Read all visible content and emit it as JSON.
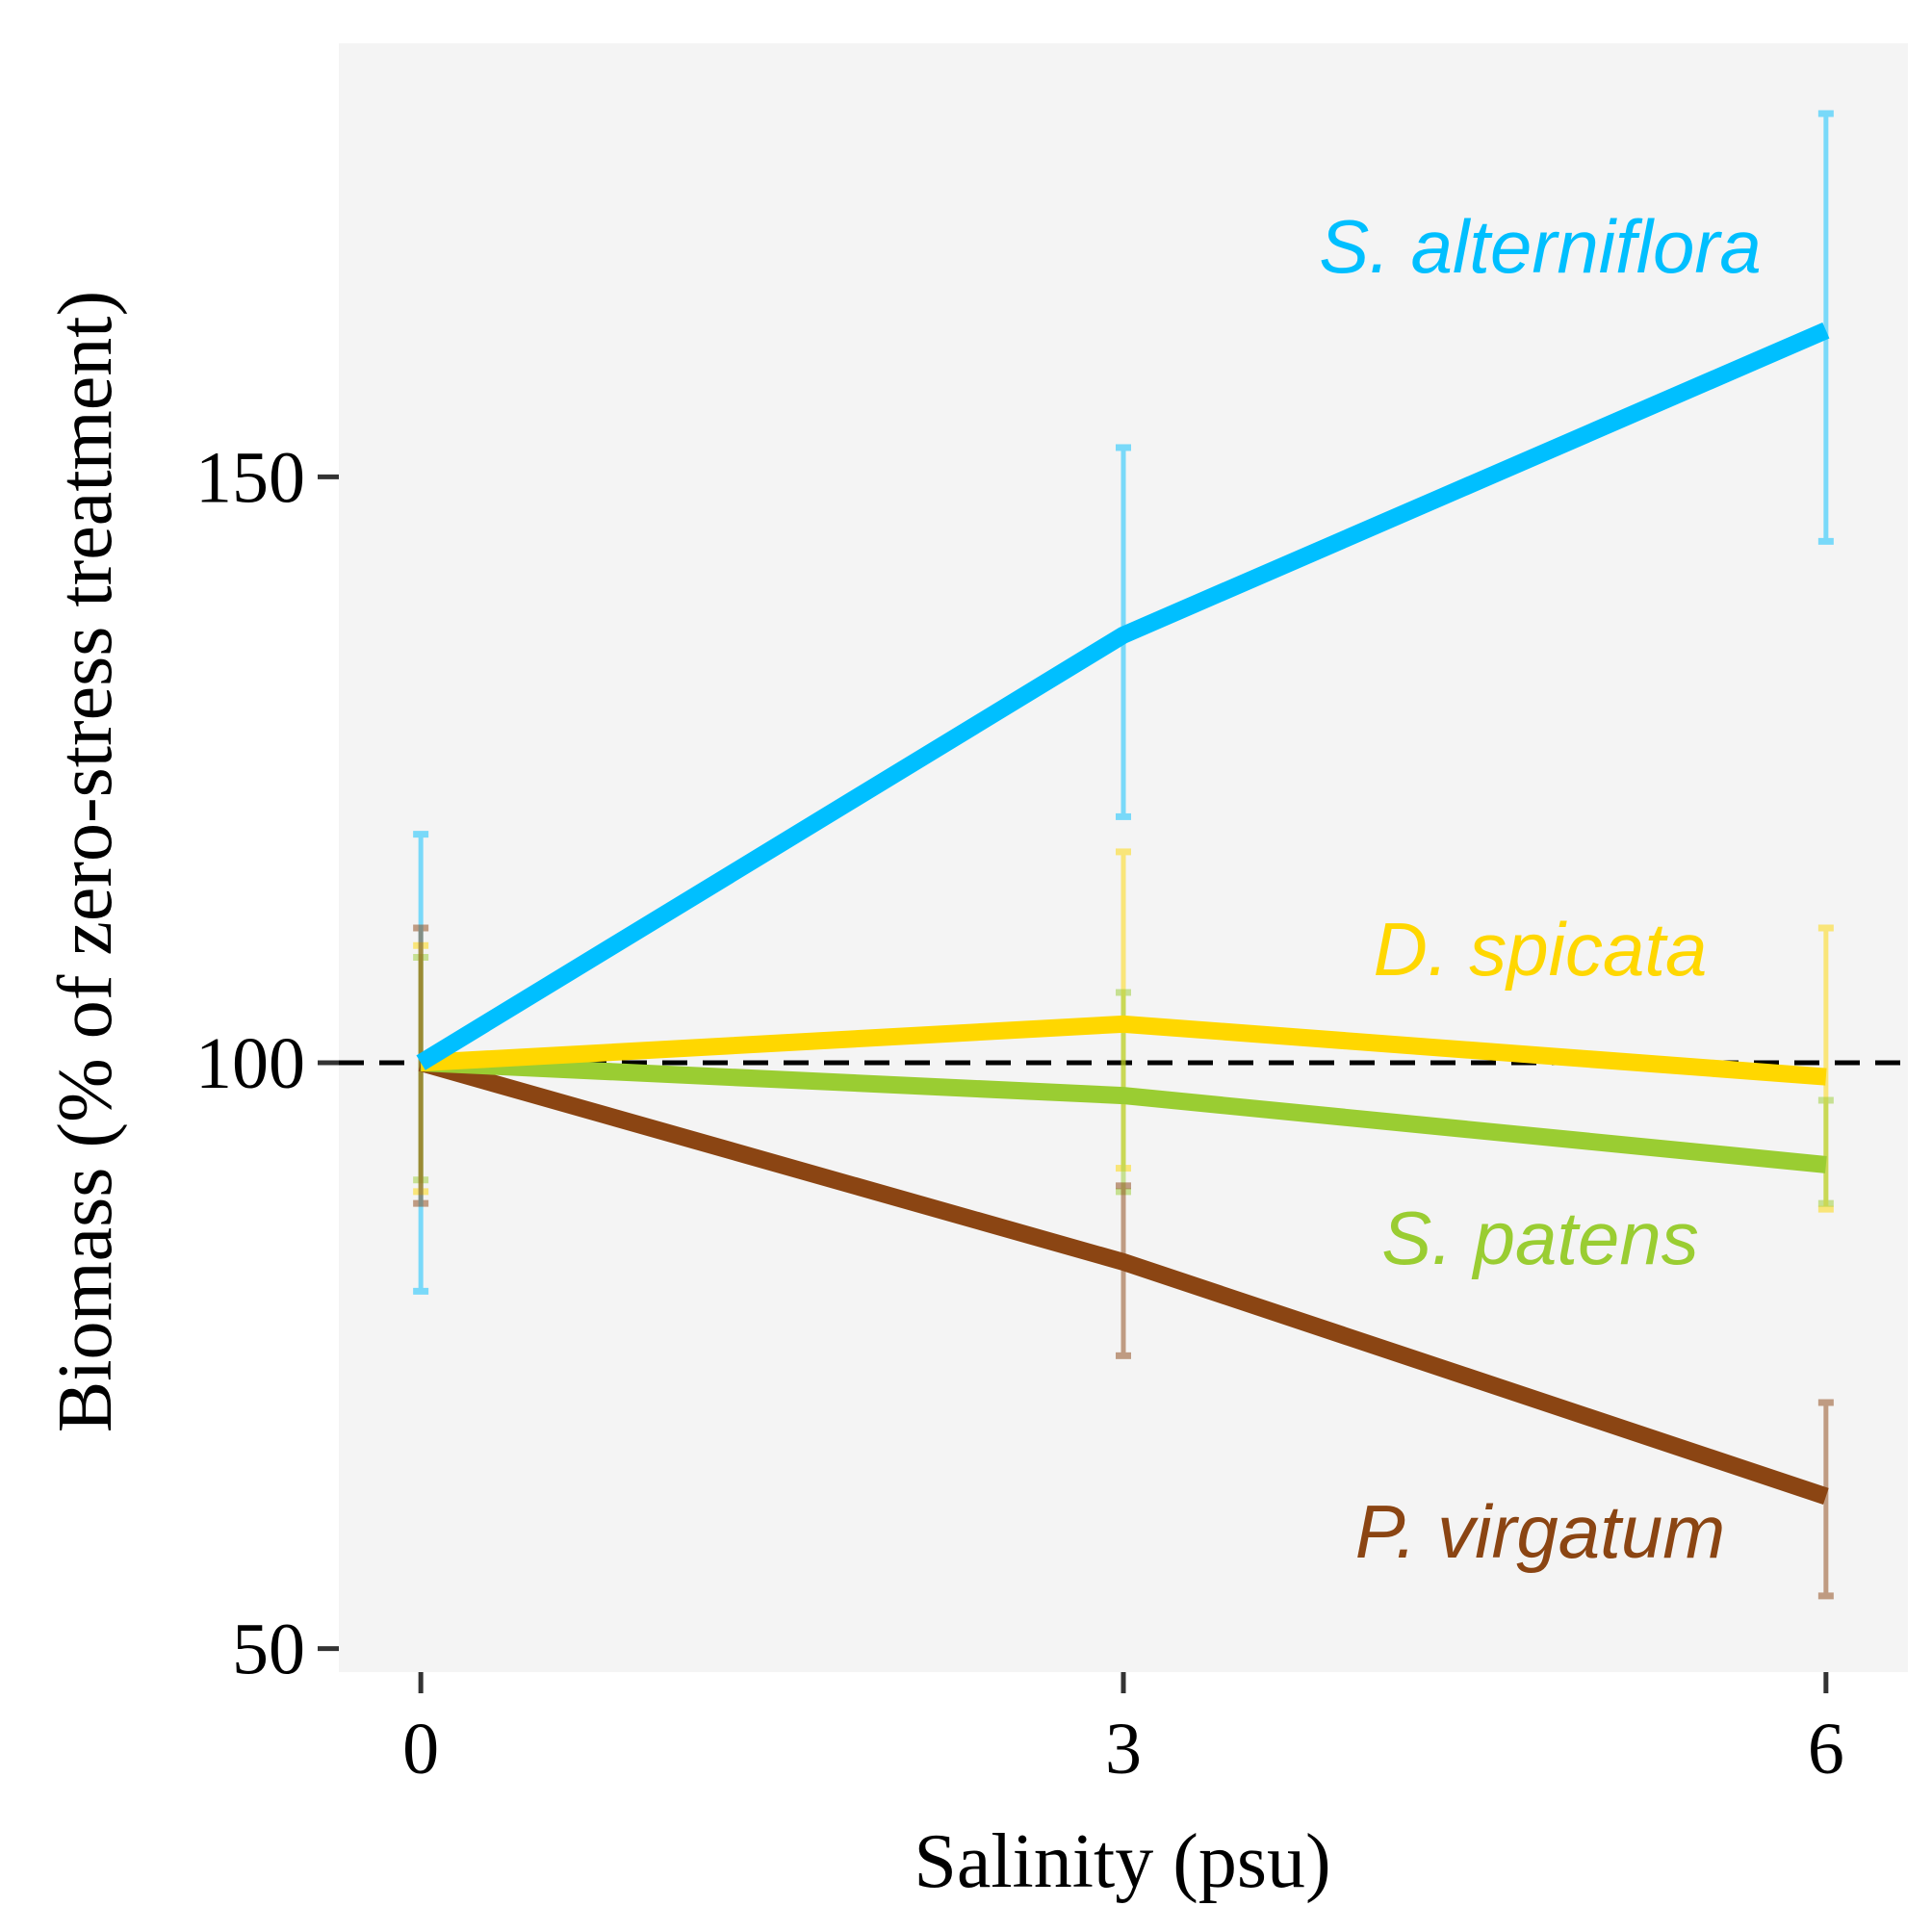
{
  "chart_data": {
    "type": "line",
    "xlabel": "Salinity (psu)",
    "ylabel": "Biomass (% of zero-stress treatment)",
    "x": [
      0,
      3,
      6
    ],
    "x_tick_labels": [
      "0",
      "3",
      "6"
    ],
    "y_ticks": [
      50,
      100,
      150
    ],
    "y_tick_labels": [
      "50",
      "100",
      "150"
    ],
    "xlim": [
      -0.35,
      6.35
    ],
    "ylim": [
      48,
      187
    ],
    "grid": false,
    "reference_line": {
      "y": 100,
      "style": "dashed",
      "color": "#000000"
    },
    "series": [
      {
        "name": "S. alterniflora",
        "color": "#00BFFF",
        "values": [
          100,
          136.5,
          162.5
        ],
        "error_low": [
          80.5,
          121,
          144.5
        ],
        "error_high": [
          119.5,
          152.5,
          181
        ]
      },
      {
        "name": "D. spicata",
        "color": "#FFD700",
        "values": [
          100,
          103.3,
          98.8
        ],
        "error_low": [
          89,
          91,
          87.5
        ],
        "error_high": [
          110,
          118,
          111.5
        ]
      },
      {
        "name": "S. patens",
        "color": "#9ACD32",
        "values": [
          100,
          97.2,
          91.3
        ],
        "error_low": [
          90,
          89,
          88
        ],
        "error_high": [
          109,
          106,
          96.8
        ]
      },
      {
        "name": "P. virgatum",
        "color": "#8B4513",
        "values": [
          100,
          83,
          63
        ],
        "error_low": [
          88,
          75,
          54.5
        ],
        "error_high": [
          111.5,
          89.5,
          71
        ]
      }
    ]
  }
}
